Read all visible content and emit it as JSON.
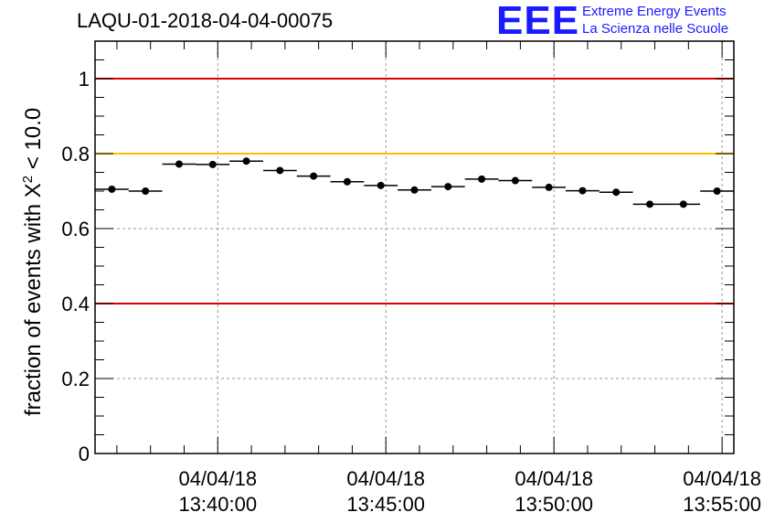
{
  "chart_data": {
    "type": "scatter",
    "title": "LAQU-01-2018-04-04-00075",
    "ylabel": "fraction of events with",
    "ylabel_symbol": "X",
    "ylabel_superscript": "2",
    "ylabel_suffix": "< 10.0",
    "xlabel": "",
    "ylim": [
      0,
      1.1
    ],
    "xlim": [
      -3.65,
      15.35
    ],
    "y_ticks": [
      {
        "value": 0,
        "label": "0"
      },
      {
        "value": 0.2,
        "label": "0.2"
      },
      {
        "value": 0.4,
        "label": "0.4"
      },
      {
        "value": 0.6,
        "label": "0.6"
      },
      {
        "value": 0.8,
        "label": "0.8"
      },
      {
        "value": 1.0,
        "label": "1"
      }
    ],
    "x_ticks": [
      {
        "value": 0,
        "date": "04/04/18",
        "time": "13:40:00"
      },
      {
        "value": 5,
        "date": "04/04/18",
        "time": "13:45:00"
      },
      {
        "value": 10,
        "date": "04/04/18",
        "time": "13:50:00"
      },
      {
        "value": 15,
        "date": "04/04/18",
        "time": "13:55:00"
      }
    ],
    "x_unit": "minutes after 13:40:00",
    "grid": true,
    "bin_width": 1,
    "series": [
      {
        "name": "fraction",
        "x": [
          -3.15,
          -2.15,
          -1.15,
          -0.15,
          0.85,
          1.85,
          2.85,
          3.85,
          4.85,
          5.85,
          6.85,
          7.85,
          8.85,
          9.85,
          10.85,
          11.85,
          12.85,
          13.85,
          14.85
        ],
        "values": [
          0.705,
          0.7,
          0.772,
          0.771,
          0.78,
          0.755,
          0.74,
          0.725,
          0.715,
          0.703,
          0.712,
          0.732,
          0.728,
          0.71,
          0.701,
          0.697,
          0.665,
          0.665,
          0.7
        ]
      }
    ],
    "reference_lines": [
      {
        "value": 1.0,
        "color": "#dd0000"
      },
      {
        "value": 0.8,
        "color": "#ffbb00"
      },
      {
        "value": 0.4,
        "color": "#dd0000"
      }
    ]
  },
  "logo": {
    "mark": "EEE",
    "line1": "Extreme Energy Events",
    "line2": "La Scienza nelle Scuole",
    "color": "#1a1aff"
  }
}
